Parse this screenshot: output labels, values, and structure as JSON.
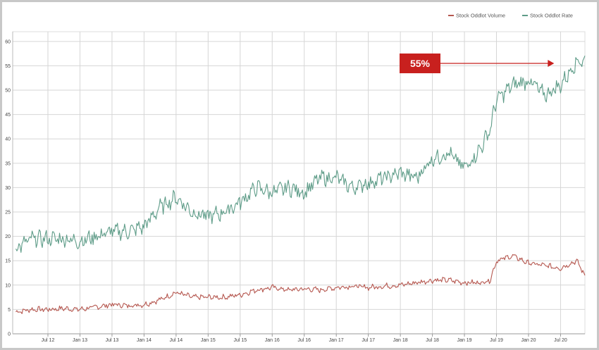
{
  "chart_data": {
    "type": "line",
    "title": "",
    "xlabel": "",
    "ylabel": "",
    "ylim": [
      0,
      62
    ],
    "yticks": [
      0,
      5,
      10,
      15,
      20,
      25,
      30,
      35,
      40,
      45,
      50,
      55,
      60
    ],
    "x_tick_labels": [
      "Jul 12",
      "Jan 13",
      "Jul 13",
      "Jan 14",
      "Jul 14",
      "Jan 15",
      "Jul 15",
      "Jan 16",
      "Jul 16",
      "Jan 17",
      "Jul 17",
      "Jan 18",
      "Jul 18",
      "Jan 19",
      "Jul 19",
      "Jan 20",
      "Jul 20"
    ],
    "x_tick_dates": [
      2012.5,
      2013.0,
      2013.5,
      2014.0,
      2014.5,
      2015.0,
      2015.5,
      2016.0,
      2016.5,
      2017.0,
      2017.5,
      2018.0,
      2018.5,
      2019.0,
      2019.5,
      2020.0,
      2020.5
    ],
    "xlim": [
      2011.95,
      2020.88
    ],
    "grid": true,
    "legend_position": "top-right",
    "series": [
      {
        "name": "Stock Oddlot Volume",
        "color": "#b5574f",
        "x": [
          2012.0,
          2012.25,
          2012.5,
          2012.75,
          2013.0,
          2013.25,
          2013.5,
          2013.75,
          2014.0,
          2014.25,
          2014.5,
          2014.75,
          2015.0,
          2015.25,
          2015.5,
          2015.75,
          2016.0,
          2016.25,
          2016.5,
          2016.75,
          2017.0,
          2017.25,
          2017.5,
          2017.75,
          2018.0,
          2018.25,
          2018.5,
          2018.75,
          2019.0,
          2019.25,
          2019.4,
          2019.5,
          2019.75,
          2020.0,
          2020.25,
          2020.5,
          2020.75,
          2020.88
        ],
        "values": [
          4.5,
          5.0,
          5.0,
          5.2,
          5.0,
          5.5,
          6.0,
          5.8,
          6.0,
          7.0,
          8.5,
          7.5,
          7.5,
          7.5,
          8.0,
          9.0,
          9.5,
          9.0,
          9.2,
          9.0,
          9.5,
          9.8,
          9.5,
          9.8,
          10.0,
          10.5,
          11.0,
          11.0,
          10.5,
          10.5,
          11.0,
          15.0,
          16.0,
          14.5,
          14.0,
          13.5,
          15.0,
          12.0
        ]
      },
      {
        "name": "Stock Oddlot Rate",
        "color": "#5e9c88",
        "x": [
          2012.0,
          2012.25,
          2012.5,
          2012.75,
          2013.0,
          2013.25,
          2013.5,
          2013.75,
          2014.0,
          2014.25,
          2014.5,
          2014.75,
          2015.0,
          2015.25,
          2015.5,
          2015.75,
          2016.0,
          2016.25,
          2016.5,
          2016.75,
          2017.0,
          2017.25,
          2017.5,
          2017.75,
          2018.0,
          2018.25,
          2018.5,
          2018.75,
          2019.0,
          2019.25,
          2019.4,
          2019.5,
          2019.75,
          2020.0,
          2020.25,
          2020.5,
          2020.75,
          2020.88
        ],
        "values": [
          17.5,
          19.5,
          19.5,
          19.5,
          19.0,
          20.0,
          21.0,
          21.0,
          22.0,
          26.0,
          28.0,
          25.0,
          24.0,
          25.0,
          27.0,
          30.0,
          29.0,
          30.0,
          29.0,
          32.0,
          32.0,
          30.0,
          31.0,
          32.0,
          33.0,
          32.0,
          36.0,
          37.0,
          34.0,
          38.0,
          42.0,
          48.0,
          51.0,
          52.0,
          49.0,
          51.0,
          56.0,
          56.0
        ]
      }
    ],
    "annotations": [
      {
        "text": "55%",
        "arrow_to_x": 2020.4,
        "arrow_to_y": 55.5,
        "color": "#c8201e"
      }
    ]
  }
}
